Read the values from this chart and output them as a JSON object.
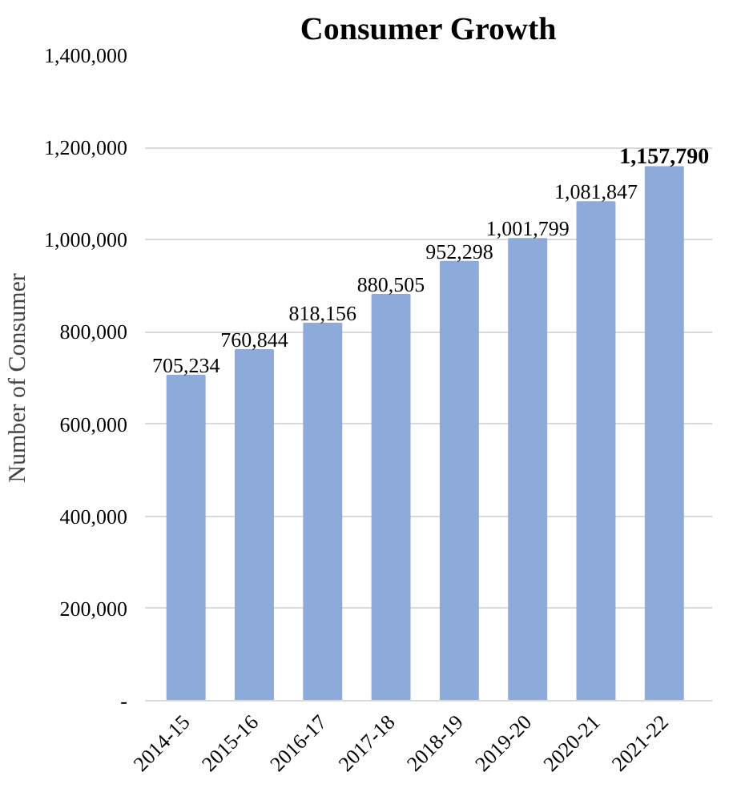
{
  "chart_data": {
    "type": "bar",
    "title": "Consumer Growth",
    "ylabel": "Number of Consumer",
    "categories": [
      "2014-15",
      "2015-16",
      "2016-17",
      "2017-18",
      "2018-19",
      "2019-20",
      "2020-21",
      "2021-22"
    ],
    "values": [
      705234,
      760844,
      818156,
      880505,
      952298,
      1001799,
      1081847,
      1157790
    ],
    "value_labels": [
      "705,234",
      "760,844",
      "818,156",
      "880,505",
      "952,298",
      "1,001,799",
      "1,081,847",
      "1,157,790"
    ],
    "color": "#8eaadb",
    "ylim": [
      0,
      1400000
    ],
    "yticks": [
      {
        "value": 0,
        "label": "-"
      },
      {
        "value": 200000,
        "label": "200,000"
      },
      {
        "value": 400000,
        "label": "400,000"
      },
      {
        "value": 600000,
        "label": "600,000"
      },
      {
        "value": 800000,
        "label": "800,000"
      },
      {
        "value": 1000000,
        "label": "1,000,000"
      },
      {
        "value": 1200000,
        "label": "1,200,000"
      },
      {
        "value": 1400000,
        "label": "1,400,000"
      }
    ],
    "grid": "y"
  }
}
